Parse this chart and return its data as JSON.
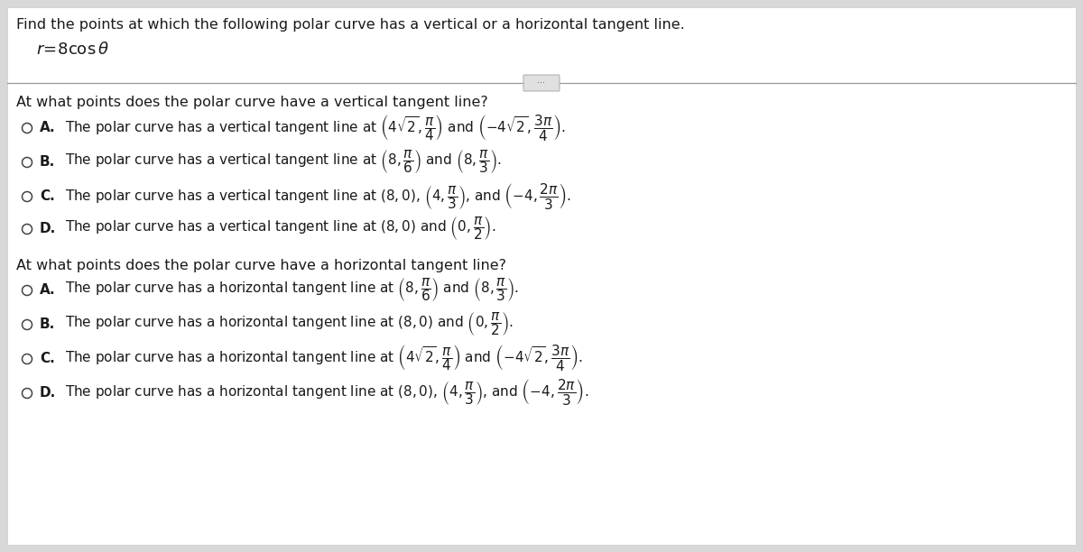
{
  "bg_color": "#d8d8d8",
  "panel_bg": "#ffffff",
  "title_text": "Find the points at which the following polar curve has a vertical or a horizontal tangent line.",
  "vertical_question": "At what points does the polar curve have a vertical tangent line?",
  "horizontal_question": "At what points does the polar curve have a horizontal tangent line?",
  "font_size_title": 11.5,
  "font_size_eq": 12.5,
  "font_size_question": 11.5,
  "font_size_option": 11.0,
  "radio_color": "#444444",
  "text_color": "#1a1a1a",
  "line_color": "#999999",
  "button_color": "#e0e0e0"
}
